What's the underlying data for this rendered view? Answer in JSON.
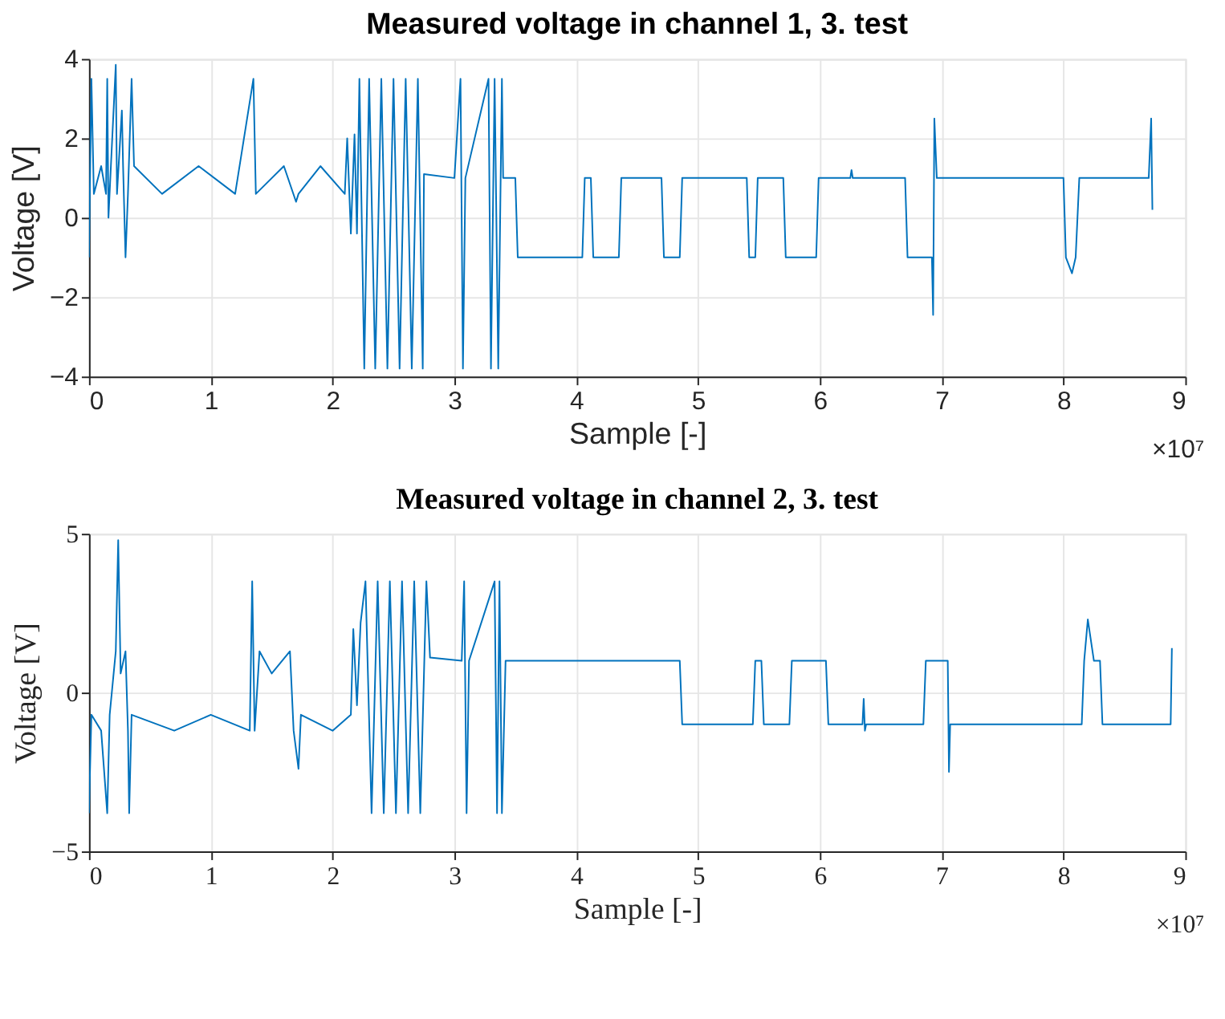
{
  "chart_data": [
    {
      "type": "line",
      "title": "Measured voltage in channel 1, 3. test",
      "xlabel": "Sample [-]",
      "ylabel": "Voltage [V]",
      "annotations": [
        "×10⁷"
      ],
      "xlim": [
        0,
        9
      ],
      "xticks": [
        0,
        1,
        2,
        3,
        4,
        5,
        6,
        7,
        8,
        9
      ],
      "ylim": [
        -4,
        4
      ],
      "yticks": [
        -4,
        -2,
        0,
        2,
        4
      ],
      "grid": true,
      "legend": false,
      "line_style": "solid",
      "marker": "none",
      "series": [
        {
          "color": "#0072bd",
          "x": [
            0,
            0.02,
            0.04,
            0.1,
            0.14,
            0.15,
            0.16,
            0.18,
            0.22,
            0.23,
            0.27,
            0.28,
            0.3,
            0.32,
            0.35,
            0.37,
            0.6,
            0.9,
            1.2,
            1.35,
            1.37,
            1.6,
            1.7,
            1.72,
            1.9,
            2.1,
            2.12,
            2.15,
            2.18,
            2.2,
            2.22,
            2.26,
            2.3,
            2.35,
            2.4,
            2.45,
            2.5,
            2.55,
            2.6,
            2.65,
            2.7,
            2.74,
            2.75,
            3.0,
            3.05,
            3.07,
            3.09,
            3.28,
            3.3,
            3.33,
            3.36,
            3.39,
            3.4,
            3.5,
            3.52,
            4.05,
            4.07,
            4.12,
            4.14,
            4.35,
            4.37,
            4.7,
            4.72,
            4.85,
            4.87,
            5.4,
            5.42,
            5.47,
            5.49,
            5.7,
            5.72,
            5.97,
            5.99,
            6.25,
            6.26,
            6.27,
            6.7,
            6.72,
            6.92,
            6.93,
            6.94,
            6.96,
            8.0,
            8.02,
            8.07,
            8.1,
            8.13,
            8.7,
            8.72,
            8.73
          ],
          "values": [
            -1,
            3.5,
            0.6,
            1.3,
            0.6,
            3.5,
            0,
            1.3,
            3.85,
            0.6,
            2.7,
            1.3,
            -1,
            0.6,
            3.5,
            1.3,
            0.6,
            1.3,
            0.6,
            3.5,
            0.6,
            1.3,
            0.4,
            0.6,
            1.3,
            0.6,
            2.0,
            -0.4,
            2.1,
            -0.4,
            3.5,
            -3.8,
            3.5,
            -3.8,
            3.5,
            -3.8,
            3.5,
            -3.8,
            3.5,
            -3.8,
            3.5,
            -3.8,
            1.1,
            1.0,
            3.5,
            -3.8,
            1.0,
            3.5,
            -3.8,
            3.5,
            -3.8,
            3.5,
            1.0,
            1.0,
            -1,
            -1,
            1.0,
            1.0,
            -1,
            -1,
            1.0,
            1.0,
            -1,
            -1,
            1.0,
            1.0,
            -1,
            -1,
            1.0,
            1.0,
            -1,
            -1,
            1.0,
            1.0,
            1.2,
            1.0,
            1.0,
            -1,
            -1,
            -2.45,
            2.5,
            1.0,
            1.0,
            -1,
            -1.4,
            -1,
            1.0,
            1.0,
            2.5,
            0.2
          ]
        }
      ]
    },
    {
      "type": "line",
      "title": "Measured voltage in channel 2, 3. test",
      "xlabel": "Sample [-]",
      "ylabel": "Voltage [V]",
      "annotations": [
        "×10⁷"
      ],
      "xlim": [
        0,
        9
      ],
      "xticks": [
        0,
        1,
        2,
        3,
        4,
        5,
        6,
        7,
        8,
        9
      ],
      "ylim": [
        -5,
        5
      ],
      "yticks": [
        -5,
        0,
        5
      ],
      "grid": true,
      "legend": false,
      "line_style": "solid",
      "marker": "none",
      "series": [
        {
          "color": "#0072bd",
          "x": [
            0,
            0.02,
            0.1,
            0.15,
            0.17,
            0.22,
            0.24,
            0.26,
            0.3,
            0.32,
            0.33,
            0.35,
            0.7,
            1.0,
            1.32,
            1.34,
            1.36,
            1.4,
            1.5,
            1.65,
            1.68,
            1.72,
            1.74,
            2.0,
            2.15,
            2.17,
            2.2,
            2.23,
            2.27,
            2.32,
            2.37,
            2.42,
            2.47,
            2.52,
            2.57,
            2.62,
            2.67,
            2.72,
            2.77,
            2.8,
            3.06,
            3.08,
            3.1,
            3.12,
            3.33,
            3.35,
            3.37,
            3.39,
            3.42,
            4.85,
            4.87,
            5.45,
            5.47,
            5.52,
            5.54,
            5.75,
            5.77,
            6.05,
            6.07,
            6.35,
            6.36,
            6.37,
            6.38,
            6.85,
            6.87,
            7.05,
            7.06,
            7.07,
            8.15,
            8.17,
            8.2,
            8.25,
            8.3,
            8.32,
            8.88,
            8.89
          ],
          "values": [
            -3.8,
            -0.7,
            -1.2,
            -3.8,
            -0.7,
            1.3,
            4.8,
            0.6,
            1.3,
            -1.2,
            -3.8,
            -0.7,
            -1.2,
            -0.7,
            -1.2,
            3.5,
            -1.2,
            1.3,
            0.6,
            1.3,
            -1.2,
            -2.4,
            -0.7,
            -1.2,
            -0.7,
            2.0,
            -0.4,
            2.2,
            3.5,
            -3.8,
            3.5,
            -3.8,
            3.5,
            -3.8,
            3.5,
            -3.8,
            3.5,
            -3.8,
            3.5,
            1.1,
            1.0,
            3.5,
            -3.8,
            1.0,
            3.5,
            -3.8,
            3.5,
            -3.8,
            1.0,
            1.0,
            -1,
            -1,
            1.0,
            1.0,
            -1,
            -1,
            1.0,
            1.0,
            -1,
            -1,
            -0.2,
            -1.2,
            -1,
            -1,
            1.0,
            1.0,
            -2.5,
            -1,
            -1,
            1.0,
            2.3,
            1.0,
            1.0,
            -1,
            -1,
            1.4
          ]
        }
      ]
    }
  ]
}
